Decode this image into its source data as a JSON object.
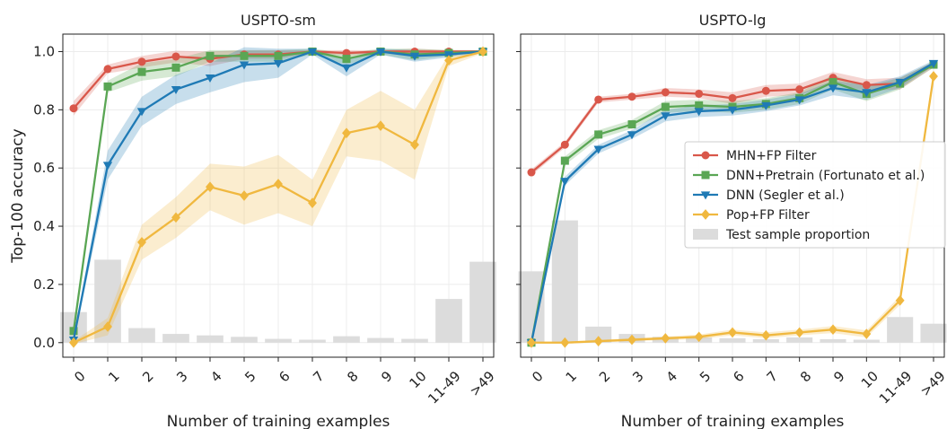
{
  "chart_data": [
    {
      "type": "line",
      "title": "USPTO-sm",
      "xlabel": "Number of training examples",
      "ylabel": "Top-100 accuracy",
      "categories": [
        "0",
        "1",
        "2",
        "3",
        "4",
        "5",
        "6",
        "7",
        "8",
        "9",
        "10",
        "11-49",
        ">49"
      ],
      "ylim": [
        -0.05,
        1.06
      ],
      "yticks": [
        "0.0",
        "0.2",
        "0.4",
        "0.6",
        "0.8",
        "1.0"
      ],
      "grid": true,
      "series": [
        {
          "name": "MHN+FP Filter",
          "color": "#d9574a",
          "marker": "circle",
          "values": [
            0.805,
            0.94,
            0.965,
            0.983,
            0.975,
            0.99,
            0.99,
            1.0,
            0.995,
            1.0,
            1.0,
            1.0,
            1.0
          ],
          "err": [
            0.025,
            0.015,
            0.02,
            0.02,
            0.025,
            0.015,
            0.015,
            0.005,
            0.01,
            0.005,
            0.01,
            0.005,
            0.005
          ]
        },
        {
          "name": "DNN+Pretrain (Fortunato et al.)",
          "color": "#5aa654",
          "marker": "square",
          "values": [
            0.04,
            0.88,
            0.93,
            0.945,
            0.985,
            0.985,
            0.985,
            1.0,
            0.975,
            1.0,
            0.99,
            0.995,
            1.0
          ],
          "err": [
            0.01,
            0.02,
            0.03,
            0.03,
            0.02,
            0.02,
            0.02,
            0.01,
            0.02,
            0.01,
            0.02,
            0.01,
            0.005
          ]
        },
        {
          "name": "DNN (Segler et al.)",
          "color": "#1f7ab5",
          "marker": "triangle-down",
          "values": [
            0.01,
            0.61,
            0.795,
            0.87,
            0.91,
            0.955,
            0.96,
            1.0,
            0.945,
            1.0,
            0.985,
            0.99,
            1.0
          ],
          "err": [
            0.01,
            0.05,
            0.05,
            0.05,
            0.05,
            0.06,
            0.05,
            0.01,
            0.03,
            0.01,
            0.02,
            0.01,
            0.005
          ]
        },
        {
          "name": "Pop+FP Filter",
          "color": "#f0b83f",
          "marker": "diamond",
          "values": [
            0.0,
            0.055,
            0.345,
            0.43,
            0.535,
            0.505,
            0.545,
            0.48,
            0.72,
            0.745,
            0.68,
            0.97,
            1.0
          ],
          "err": [
            0.005,
            0.03,
            0.06,
            0.07,
            0.08,
            0.1,
            0.1,
            0.08,
            0.08,
            0.12,
            0.12,
            0.02,
            0.005
          ]
        }
      ],
      "bars": {
        "name": "Test sample proportion",
        "color": "#dcdcdc",
        "values": [
          0.105,
          0.285,
          0.05,
          0.03,
          0.025,
          0.02,
          0.013,
          0.01,
          0.022,
          0.016,
          0.013,
          0.15,
          0.278
        ]
      }
    },
    {
      "type": "line",
      "title": "USPTO-lg",
      "xlabel": "Number of training examples",
      "ylabel": "",
      "categories": [
        "0",
        "1",
        "2",
        "3",
        "4",
        "5",
        "6",
        "7",
        "8",
        "9",
        "10",
        "11-49",
        ">49"
      ],
      "ylim": [
        -0.05,
        1.06
      ],
      "grid": true,
      "series": [
        {
          "name": "MHN+FP Filter",
          "color": "#d9574a",
          "marker": "circle",
          "values": [
            0.585,
            0.68,
            0.835,
            0.845,
            0.86,
            0.855,
            0.84,
            0.865,
            0.87,
            0.91,
            0.885,
            0.89,
            0.955
          ],
          "err": [
            0.01,
            0.01,
            0.01,
            0.01,
            0.015,
            0.015,
            0.02,
            0.02,
            0.02,
            0.02,
            0.02,
            0.02,
            0.01
          ]
        },
        {
          "name": "DNN+Pretrain (Fortunato et al.)",
          "color": "#5aa654",
          "marker": "square",
          "values": [
            0.0,
            0.625,
            0.715,
            0.75,
            0.81,
            0.815,
            0.81,
            0.82,
            0.84,
            0.895,
            0.855,
            0.89,
            0.955
          ],
          "err": [
            0.005,
            0.015,
            0.015,
            0.015,
            0.02,
            0.02,
            0.02,
            0.02,
            0.02,
            0.025,
            0.025,
            0.02,
            0.01
          ]
        },
        {
          "name": "DNN (Segler et al.)",
          "color": "#1f7ab5",
          "marker": "triangle-down",
          "values": [
            0.0,
            0.555,
            0.665,
            0.715,
            0.78,
            0.795,
            0.8,
            0.815,
            0.835,
            0.875,
            0.86,
            0.895,
            0.96
          ],
          "err": [
            0.005,
            0.015,
            0.015,
            0.015,
            0.02,
            0.02,
            0.02,
            0.02,
            0.02,
            0.025,
            0.025,
            0.02,
            0.01
          ]
        },
        {
          "name": "Pop+FP Filter",
          "color": "#f0b83f",
          "marker": "diamond",
          "values": [
            0.0,
            0.0,
            0.005,
            0.01,
            0.015,
            0.02,
            0.035,
            0.025,
            0.035,
            0.045,
            0.03,
            0.145,
            0.915
          ],
          "err": [
            0.003,
            0.003,
            0.005,
            0.005,
            0.006,
            0.008,
            0.01,
            0.01,
            0.01,
            0.012,
            0.012,
            0.015,
            0.02
          ]
        }
      ],
      "bars": {
        "name": "Test sample proportion",
        "color": "#dcdcdc",
        "values": [
          0.245,
          0.42,
          0.055,
          0.03,
          0.02,
          0.018,
          0.015,
          0.012,
          0.018,
          0.012,
          0.01,
          0.088,
          0.065
        ]
      }
    }
  ],
  "legend": {
    "placement": "right",
    "entries": [
      "MHN+FP Filter",
      "DNN+Pretrain (Fortunato et al.)",
      "DNN (Segler et al.)",
      "Pop+FP Filter",
      "Test sample proportion"
    ]
  }
}
